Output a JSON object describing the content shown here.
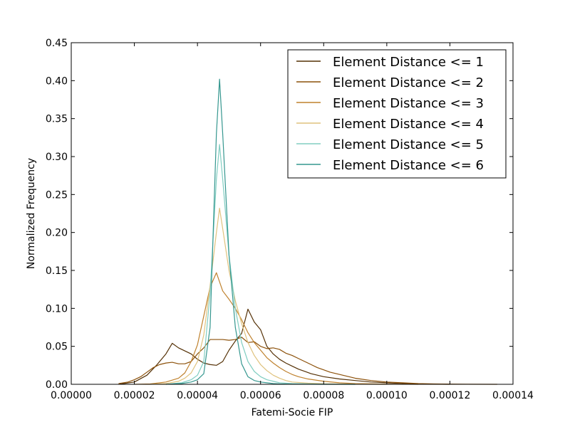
{
  "chart_data": {
    "type": "line",
    "title": "",
    "xlabel": "Fatemi-Socie FIP",
    "ylabel": "Normalized Frequency",
    "xlim": [
      0.0,
      0.00014
    ],
    "ylim": [
      0.0,
      0.45
    ],
    "xticks": [
      0.0,
      2e-05,
      4e-05,
      6e-05,
      8e-05,
      0.0001,
      0.00012,
      0.00014
    ],
    "xtick_labels": [
      "0.00000",
      "0.00002",
      "0.00004",
      "0.00006",
      "0.00008",
      "0.00010",
      "0.00012",
      "0.00014"
    ],
    "yticks": [
      0.0,
      0.05,
      0.1,
      0.15,
      0.2,
      0.25,
      0.3,
      0.35,
      0.4,
      0.45
    ],
    "ytick_labels": [
      "0.00",
      "0.05",
      "0.10",
      "0.15",
      "0.20",
      "0.25",
      "0.30",
      "0.35",
      "0.40",
      "0.45"
    ],
    "grid": false,
    "legend_position": "top-right",
    "series": [
      {
        "name": "Element Distance <= 1",
        "color": "#543005",
        "x": [
          1.5e-05,
          2e-05,
          2.4e-05,
          2.7e-05,
          3e-05,
          3.2e-05,
          3.4e-05,
          3.6e-05,
          3.8e-05,
          4e-05,
          4.2e-05,
          4.4e-05,
          4.6e-05,
          4.8e-05,
          5e-05,
          5.2e-05,
          5.4e-05,
          5.6e-05,
          5.8e-05,
          6e-05,
          6.2e-05,
          6.4e-05,
          6.6e-05,
          6.8e-05,
          7e-05,
          7.2e-05,
          7.4e-05,
          7.6e-05,
          7.8e-05,
          8e-05,
          8.5e-05,
          9e-05,
          9.5e-05,
          0.0001,
          0.000105,
          0.00011,
          0.000115,
          0.00012
        ],
        "y": [
          0.0,
          0.003,
          0.012,
          0.025,
          0.04,
          0.054,
          0.048,
          0.044,
          0.04,
          0.033,
          0.028,
          0.026,
          0.025,
          0.03,
          0.045,
          0.057,
          0.067,
          0.099,
          0.082,
          0.072,
          0.05,
          0.04,
          0.033,
          0.028,
          0.024,
          0.02,
          0.017,
          0.014,
          0.012,
          0.01,
          0.007,
          0.005,
          0.003,
          0.002,
          0.001,
          0.0005,
          0.0002,
          0.0
        ]
      },
      {
        "name": "Element Distance <= 2",
        "color": "#8c510a",
        "x": [
          1.5e-05,
          1.8e-05,
          2e-05,
          2.2e-05,
          2.4e-05,
          2.6e-05,
          2.8e-05,
          3e-05,
          3.2e-05,
          3.4e-05,
          3.6e-05,
          3.8e-05,
          4e-05,
          4.2e-05,
          4.4e-05,
          4.6e-05,
          4.8e-05,
          5e-05,
          5.2e-05,
          5.4e-05,
          5.6e-05,
          5.8e-05,
          6e-05,
          6.2e-05,
          6.4e-05,
          6.6e-05,
          6.8e-05,
          7e-05,
          7.2e-05,
          7.4e-05,
          7.6e-05,
          7.8e-05,
          8e-05,
          8.2e-05,
          8.4e-05,
          8.6e-05,
          8.8e-05,
          9e-05,
          9.5e-05,
          0.0001,
          0.000105,
          0.00011,
          0.000115,
          0.00012,
          0.000125,
          0.000135
        ],
        "y": [
          0.001,
          0.003,
          0.006,
          0.01,
          0.016,
          0.022,
          0.026,
          0.028,
          0.029,
          0.027,
          0.027,
          0.03,
          0.04,
          0.048,
          0.059,
          0.059,
          0.059,
          0.058,
          0.059,
          0.062,
          0.055,
          0.056,
          0.05,
          0.047,
          0.048,
          0.046,
          0.041,
          0.038,
          0.034,
          0.03,
          0.026,
          0.022,
          0.019,
          0.016,
          0.014,
          0.012,
          0.01,
          0.008,
          0.005,
          0.003,
          0.002,
          0.001,
          0.0005,
          0.0003,
          0.0001,
          0.0
        ]
      },
      {
        "name": "Element Distance <= 3",
        "color": "#bf812d",
        "x": [
          2e-05,
          2.5e-05,
          3e-05,
          3.4e-05,
          3.6e-05,
          3.8e-05,
          4e-05,
          4.2e-05,
          4.4e-05,
          4.6e-05,
          4.8e-05,
          5e-05,
          5.2e-05,
          5.4e-05,
          5.6e-05,
          5.8e-05,
          6e-05,
          6.2e-05,
          6.4e-05,
          6.6e-05,
          6.8e-05,
          7e-05,
          7.2e-05,
          7.5e-05,
          8e-05,
          8.5e-05,
          9e-05,
          0.0001,
          0.00011
        ],
        "y": [
          0.0,
          0.0005,
          0.003,
          0.008,
          0.015,
          0.03,
          0.052,
          0.09,
          0.128,
          0.147,
          0.123,
          0.112,
          0.1,
          0.085,
          0.068,
          0.055,
          0.045,
          0.035,
          0.028,
          0.022,
          0.017,
          0.013,
          0.01,
          0.007,
          0.004,
          0.002,
          0.001,
          0.0003,
          0.0
        ]
      },
      {
        "name": "Element Distance <= 4",
        "color": "#dfc27d",
        "x": [
          2.5e-05,
          3e-05,
          3.4e-05,
          3.6e-05,
          3.8e-05,
          4e-05,
          4.2e-05,
          4.4e-05,
          4.6e-05,
          4.7e-05,
          4.8e-05,
          5e-05,
          5.2e-05,
          5.4e-05,
          5.6e-05,
          5.8e-05,
          6e-05,
          6.2e-05,
          6.4e-05,
          6.6e-05,
          6.8e-05,
          7e-05,
          7.5e-05,
          8e-05,
          9e-05,
          0.0001
        ],
        "y": [
          0.0,
          0.001,
          0.004,
          0.008,
          0.015,
          0.03,
          0.065,
          0.13,
          0.2,
          0.232,
          0.205,
          0.15,
          0.11,
          0.08,
          0.055,
          0.038,
          0.026,
          0.018,
          0.012,
          0.008,
          0.005,
          0.003,
          0.0015,
          0.0007,
          0.0002,
          0.0
        ]
      },
      {
        "name": "Element Distance <= 5",
        "color": "#80cdc1",
        "x": [
          3e-05,
          3.5e-05,
          3.8e-05,
          4e-05,
          4.2e-05,
          4.4e-05,
          4.6e-05,
          4.7e-05,
          4.8e-05,
          5e-05,
          5.2e-05,
          5.4e-05,
          5.6e-05,
          5.8e-05,
          6e-05,
          6.2e-05,
          6.4e-05,
          6.6e-05,
          7e-05,
          8e-05,
          9e-05
        ],
        "y": [
          0.0,
          0.002,
          0.006,
          0.012,
          0.03,
          0.12,
          0.27,
          0.316,
          0.27,
          0.17,
          0.1,
          0.055,
          0.03,
          0.017,
          0.01,
          0.006,
          0.004,
          0.002,
          0.001,
          0.0002,
          0.0
        ]
      },
      {
        "name": "Element Distance <= 6",
        "color": "#35978f",
        "x": [
          3e-05,
          3.5e-05,
          3.8e-05,
          4e-05,
          4.2e-05,
          4.4e-05,
          4.6e-05,
          4.7e-05,
          4.8e-05,
          5e-05,
          5.2e-05,
          5.4e-05,
          5.6e-05,
          5.8e-05,
          6e-05,
          6.2e-05,
          6.4e-05,
          6.6e-05,
          7e-05,
          8e-05,
          9e-05
        ],
        "y": [
          0.0,
          0.001,
          0.003,
          0.006,
          0.014,
          0.075,
          0.33,
          0.402,
          0.33,
          0.17,
          0.075,
          0.027,
          0.01,
          0.005,
          0.003,
          0.002,
          0.001,
          0.0005,
          0.0002,
          0.0,
          0.0
        ]
      }
    ]
  }
}
